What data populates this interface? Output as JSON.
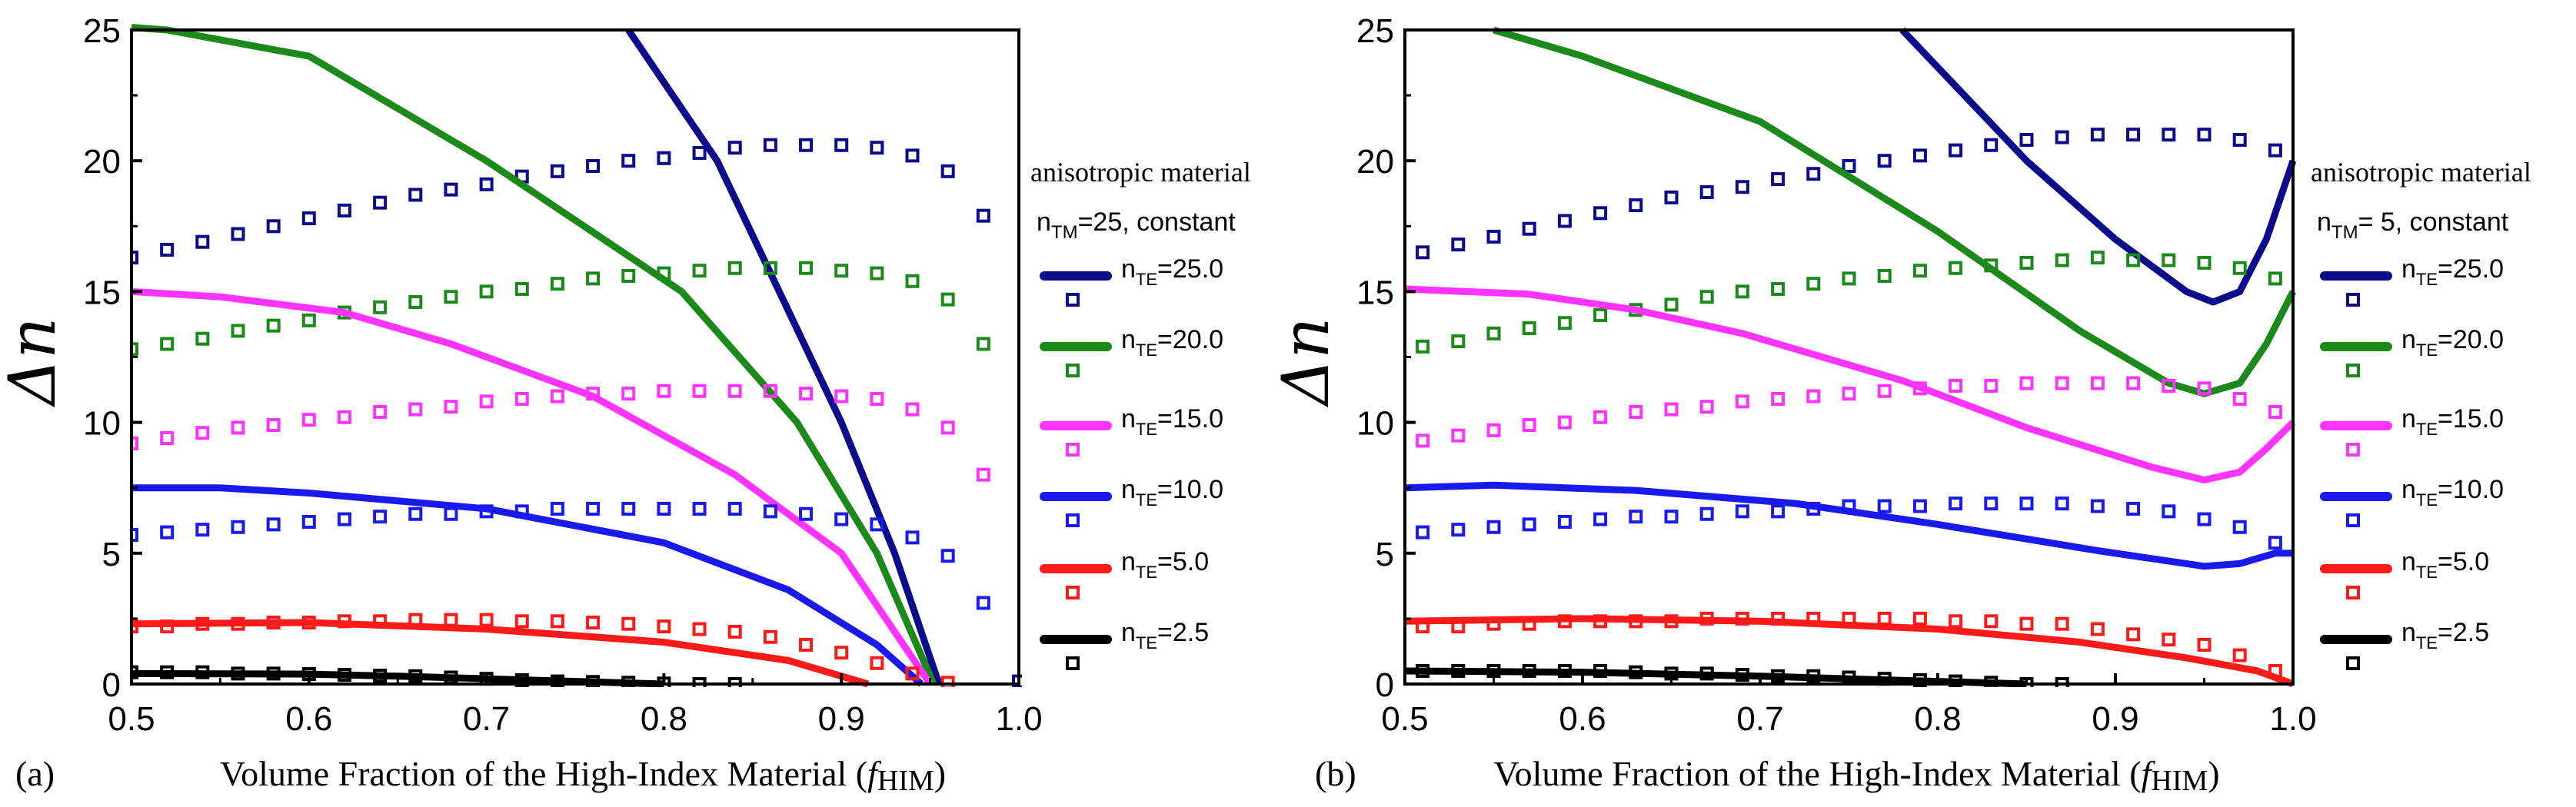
{
  "chart_data": [
    {
      "type": "line",
      "panel_label": "(a)",
      "xlabel": "Volume Fraction of the High-Index Material (",
      "xlabel_italic": "f",
      "xlabel_sub": "HIM",
      "xlabel_close": ")",
      "ylabel": "Δn",
      "xlim": [
        0.5,
        1.0
      ],
      "ylim": [
        0,
        25
      ],
      "xticks": [
        "0.5",
        "0.6",
        "0.7",
        "0.8",
        "0.9",
        "1.0"
      ],
      "yticks": [
        "0",
        "5",
        "10",
        "15",
        "20",
        "25"
      ],
      "legend_title": "anisotropic material",
      "legend_subtitle": {
        "n": "n",
        "sub": "TM",
        "rest": "=25, constant"
      },
      "legend_placement": "right",
      "series": [
        {
          "name": "nTE=25.0",
          "label_sub": "TE",
          "label_rest": "=25.0",
          "color": "#0b0b8c",
          "line_x": [
            0.78,
            0.83,
            0.865,
            0.9,
            0.93,
            0.955
          ],
          "line_y": [
            25,
            20,
            15,
            10,
            5,
            0
          ],
          "marker_x": [
            0.5,
            0.52,
            0.54,
            0.56,
            0.58,
            0.6,
            0.62,
            0.64,
            0.66,
            0.68,
            0.7,
            0.72,
            0.74,
            0.76,
            0.78,
            0.8,
            0.82,
            0.84,
            0.86,
            0.88,
            0.9,
            0.92,
            0.94,
            0.96,
            0.98,
            1.0
          ],
          "marker_y": [
            16.3,
            16.6,
            16.9,
            17.2,
            17.5,
            17.8,
            18.1,
            18.4,
            18.7,
            18.9,
            19.1,
            19.4,
            19.6,
            19.8,
            20.0,
            20.1,
            20.3,
            20.5,
            20.6,
            20.6,
            20.6,
            20.5,
            20.2,
            19.6,
            17.9,
            0.1
          ]
        },
        {
          "name": "nTE=20.0",
          "label_sub": "TE",
          "label_rest": "=20.0",
          "color": "#1b8a1b",
          "line_x": [
            0.5,
            0.52,
            0.6,
            0.7,
            0.81,
            0.875,
            0.92,
            0.952
          ],
          "line_y": [
            25.1,
            25,
            24,
            20,
            15,
            10,
            5,
            0
          ],
          "marker_x": [
            0.5,
            0.52,
            0.54,
            0.56,
            0.58,
            0.6,
            0.62,
            0.64,
            0.66,
            0.68,
            0.7,
            0.72,
            0.74,
            0.76,
            0.78,
            0.8,
            0.82,
            0.84,
            0.86,
            0.88,
            0.9,
            0.92,
            0.94,
            0.96,
            0.98
          ],
          "marker_y": [
            12.8,
            13.0,
            13.2,
            13.5,
            13.7,
            13.9,
            14.2,
            14.4,
            14.6,
            14.8,
            15.0,
            15.1,
            15.3,
            15.5,
            15.6,
            15.7,
            15.8,
            15.9,
            15.9,
            15.9,
            15.8,
            15.7,
            15.4,
            14.7,
            13.0
          ]
        },
        {
          "name": "nTE=15.0",
          "label_sub": "TE",
          "label_rest": "=15.0",
          "color": "#ff33ff",
          "line_x": [
            0.5,
            0.55,
            0.62,
            0.68,
            0.76,
            0.84,
            0.9,
            0.93,
            0.95
          ],
          "line_y": [
            15,
            14.8,
            14.2,
            13,
            11,
            8,
            5,
            2,
            0
          ],
          "marker_x": [
            0.5,
            0.52,
            0.54,
            0.56,
            0.58,
            0.6,
            0.62,
            0.64,
            0.66,
            0.68,
            0.7,
            0.72,
            0.74,
            0.76,
            0.78,
            0.8,
            0.82,
            0.84,
            0.86,
            0.88,
            0.9,
            0.92,
            0.94,
            0.96,
            0.98
          ],
          "marker_y": [
            9.2,
            9.4,
            9.6,
            9.8,
            9.9,
            10.1,
            10.2,
            10.4,
            10.5,
            10.6,
            10.8,
            10.9,
            11.0,
            11.1,
            11.1,
            11.2,
            11.2,
            11.2,
            11.2,
            11.1,
            11.0,
            10.9,
            10.5,
            9.8,
            8.0
          ]
        },
        {
          "name": "nTE=10.0",
          "label_sub": "TE",
          "label_rest": "=10.0",
          "color": "#1a1aee",
          "line_x": [
            0.5,
            0.55,
            0.6,
            0.7,
            0.8,
            0.87,
            0.92,
            0.945
          ],
          "line_y": [
            7.5,
            7.5,
            7.3,
            6.7,
            5.4,
            3.6,
            1.5,
            0
          ],
          "marker_x": [
            0.5,
            0.52,
            0.54,
            0.56,
            0.58,
            0.6,
            0.62,
            0.64,
            0.66,
            0.68,
            0.7,
            0.72,
            0.74,
            0.76,
            0.78,
            0.8,
            0.82,
            0.84,
            0.86,
            0.88,
            0.9,
            0.92,
            0.94,
            0.96,
            0.98
          ],
          "marker_y": [
            5.7,
            5.8,
            5.9,
            6.0,
            6.1,
            6.2,
            6.3,
            6.4,
            6.5,
            6.5,
            6.6,
            6.6,
            6.7,
            6.7,
            6.7,
            6.7,
            6.7,
            6.7,
            6.6,
            6.5,
            6.3,
            6.1,
            5.6,
            4.9,
            3.1
          ]
        },
        {
          "name": "nTE=5.0",
          "label_sub": "TE",
          "label_rest": "=5.0",
          "color": "#ff1a1a",
          "line_x": [
            0.5,
            0.6,
            0.7,
            0.8,
            0.87,
            0.915
          ],
          "line_y": [
            2.3,
            2.35,
            2.1,
            1.6,
            0.9,
            0
          ],
          "marker_x": [
            0.5,
            0.52,
            0.54,
            0.56,
            0.58,
            0.6,
            0.62,
            0.64,
            0.66,
            0.68,
            0.7,
            0.72,
            0.74,
            0.76,
            0.78,
            0.8,
            0.82,
            0.84,
            0.86,
            0.88,
            0.9,
            0.92,
            0.94,
            0.96
          ],
          "marker_y": [
            2.2,
            2.2,
            2.3,
            2.3,
            2.35,
            2.35,
            2.4,
            2.4,
            2.45,
            2.45,
            2.45,
            2.4,
            2.4,
            2.35,
            2.3,
            2.2,
            2.1,
            2.0,
            1.8,
            1.5,
            1.2,
            0.8,
            0.4,
            0.05
          ]
        },
        {
          "name": "nTE=2.5",
          "label_sub": "TE",
          "label_rest": "=2.5",
          "color": "#000000",
          "line_x": [
            0.5,
            0.6,
            0.65,
            0.75,
            0.8
          ],
          "line_y": [
            0.4,
            0.38,
            0.3,
            0.1,
            0
          ],
          "marker_x": [
            0.5,
            0.52,
            0.54,
            0.56,
            0.58,
            0.6,
            0.62,
            0.64,
            0.66,
            0.68,
            0.7,
            0.72,
            0.74,
            0.76,
            0.78,
            0.8,
            0.82,
            0.84
          ],
          "marker_y": [
            0.45,
            0.45,
            0.45,
            0.4,
            0.4,
            0.38,
            0.35,
            0.32,
            0.3,
            0.25,
            0.2,
            0.15,
            0.1,
            0.08,
            0.05,
            0.02,
            0,
            0
          ]
        }
      ]
    },
    {
      "type": "line",
      "panel_label": "(b)",
      "xlabel": "Volume Fraction of the High-Index Material (",
      "xlabel_italic": "f",
      "xlabel_sub": "HIM",
      "xlabel_close": ")",
      "ylabel": "Δn",
      "xlim": [
        0.5,
        1.0
      ],
      "ylim": [
        0,
        25
      ],
      "xticks": [
        "0.5",
        "0.6",
        "0.7",
        "0.8",
        "0.9",
        "1.0"
      ],
      "yticks": [
        "0",
        "5",
        "10",
        "15",
        "20",
        "25"
      ],
      "legend_title": "anisotropic material",
      "legend_subtitle": {
        "n": "n",
        "sub": "TM",
        "rest": "= 5, constant"
      },
      "legend_placement": "right",
      "series": [
        {
          "name": "nTE=25.0",
          "label_sub": "TE",
          "label_rest": "=25.0",
          "color": "#0b0b8c",
          "line_x": [
            0.78,
            0.85,
            0.9,
            0.94,
            0.955,
            0.97,
            0.985,
            1.0
          ],
          "line_y": [
            25,
            20,
            17,
            15,
            14.6,
            15,
            17,
            20
          ],
          "marker_x": [
            0.51,
            0.53,
            0.55,
            0.57,
            0.59,
            0.61,
            0.63,
            0.65,
            0.67,
            0.69,
            0.71,
            0.73,
            0.75,
            0.77,
            0.79,
            0.81,
            0.83,
            0.85,
            0.87,
            0.89,
            0.91,
            0.93,
            0.95,
            0.97,
            0.99
          ],
          "marker_y": [
            16.5,
            16.8,
            17.1,
            17.4,
            17.7,
            18.0,
            18.3,
            18.6,
            18.8,
            19.0,
            19.3,
            19.5,
            19.8,
            20.0,
            20.2,
            20.4,
            20.6,
            20.8,
            20.9,
            21.0,
            21.0,
            21.0,
            21.0,
            20.8,
            20.4
          ]
        },
        {
          "name": "nTE=20.0",
          "label_sub": "TE",
          "label_rest": "=20.0",
          "color": "#1b8a1b",
          "line_x": [
            0.55,
            0.6,
            0.7,
            0.8,
            0.88,
            0.93,
            0.95,
            0.97,
            0.985,
            1.0
          ],
          "line_y": [
            25,
            24,
            21.5,
            17.3,
            13.5,
            11.5,
            11.1,
            11.5,
            13,
            15
          ],
          "marker_x": [
            0.51,
            0.53,
            0.55,
            0.57,
            0.59,
            0.61,
            0.63,
            0.65,
            0.67,
            0.69,
            0.71,
            0.73,
            0.75,
            0.77,
            0.79,
            0.81,
            0.83,
            0.85,
            0.87,
            0.89,
            0.91,
            0.93,
            0.95,
            0.97,
            0.99
          ],
          "marker_y": [
            12.9,
            13.1,
            13.4,
            13.6,
            13.8,
            14.1,
            14.3,
            14.5,
            14.8,
            15.0,
            15.1,
            15.3,
            15.5,
            15.6,
            15.8,
            15.9,
            16.0,
            16.1,
            16.2,
            16.3,
            16.2,
            16.2,
            16.1,
            15.9,
            15.5
          ]
        },
        {
          "name": "nTE=15.0",
          "label_sub": "TE",
          "label_rest": "=15.0",
          "color": "#ff33ff",
          "line_x": [
            0.5,
            0.57,
            0.63,
            0.69,
            0.78,
            0.85,
            0.92,
            0.95,
            0.97,
            0.985,
            1.0
          ],
          "line_y": [
            15.1,
            14.9,
            14.3,
            13.4,
            11.6,
            9.8,
            8.3,
            7.8,
            8.1,
            9,
            10
          ],
          "marker_x": [
            0.51,
            0.53,
            0.55,
            0.57,
            0.59,
            0.61,
            0.63,
            0.65,
            0.67,
            0.69,
            0.71,
            0.73,
            0.75,
            0.77,
            0.79,
            0.81,
            0.83,
            0.85,
            0.87,
            0.89,
            0.91,
            0.93,
            0.95,
            0.97,
            0.99
          ],
          "marker_y": [
            9.3,
            9.5,
            9.7,
            9.9,
            10.0,
            10.2,
            10.4,
            10.5,
            10.6,
            10.8,
            10.9,
            11.0,
            11.1,
            11.2,
            11.3,
            11.4,
            11.4,
            11.5,
            11.5,
            11.5,
            11.5,
            11.4,
            11.3,
            10.9,
            10.4
          ]
        },
        {
          "name": "nTE=10.0",
          "label_sub": "TE",
          "label_rest": "=10.0",
          "color": "#1a1aee",
          "line_x": [
            0.5,
            0.55,
            0.63,
            0.72,
            0.8,
            0.89,
            0.95,
            0.97,
            0.99,
            1.0
          ],
          "line_y": [
            7.5,
            7.6,
            7.4,
            6.9,
            6.1,
            5.1,
            4.5,
            4.6,
            5,
            5
          ],
          "marker_x": [
            0.51,
            0.53,
            0.55,
            0.57,
            0.59,
            0.61,
            0.63,
            0.65,
            0.67,
            0.69,
            0.71,
            0.73,
            0.75,
            0.77,
            0.79,
            0.81,
            0.83,
            0.85,
            0.87,
            0.89,
            0.91,
            0.93,
            0.95,
            0.97,
            0.99
          ],
          "marker_y": [
            5.8,
            5.9,
            6.0,
            6.1,
            6.2,
            6.3,
            6.4,
            6.4,
            6.5,
            6.6,
            6.6,
            6.7,
            6.8,
            6.8,
            6.8,
            6.9,
            6.9,
            6.9,
            6.9,
            6.8,
            6.7,
            6.6,
            6.3,
            6.0,
            5.4
          ]
        },
        {
          "name": "nTE=5.0",
          "label_sub": "TE",
          "label_rest": "=5.0",
          "color": "#ff1a1a",
          "line_x": [
            0.5,
            0.6,
            0.7,
            0.8,
            0.88,
            0.94,
            0.98,
            1.0
          ],
          "line_y": [
            2.4,
            2.5,
            2.4,
            2.1,
            1.6,
            1.0,
            0.5,
            0
          ],
          "marker_x": [
            0.51,
            0.53,
            0.55,
            0.57,
            0.59,
            0.61,
            0.63,
            0.65,
            0.67,
            0.69,
            0.71,
            0.73,
            0.75,
            0.77,
            0.79,
            0.81,
            0.83,
            0.85,
            0.87,
            0.89,
            0.91,
            0.93,
            0.95,
            0.97,
            0.99
          ],
          "marker_y": [
            2.2,
            2.2,
            2.3,
            2.3,
            2.4,
            2.4,
            2.4,
            2.4,
            2.5,
            2.5,
            2.5,
            2.5,
            2.5,
            2.5,
            2.5,
            2.4,
            2.4,
            2.3,
            2.3,
            2.1,
            1.9,
            1.7,
            1.5,
            1.1,
            0.5
          ]
        },
        {
          "name": "nTE=2.5",
          "label_sub": "TE",
          "label_rest": "=2.5",
          "color": "#000000",
          "line_x": [
            0.5,
            0.6,
            0.7,
            0.8,
            0.85
          ],
          "line_y": [
            0.5,
            0.45,
            0.3,
            0.1,
            0
          ],
          "marker_x": [
            0.51,
            0.53,
            0.55,
            0.57,
            0.59,
            0.61,
            0.63,
            0.65,
            0.67,
            0.69,
            0.71,
            0.73,
            0.75,
            0.77,
            0.79,
            0.81,
            0.83,
            0.85,
            0.87
          ],
          "marker_y": [
            0.5,
            0.5,
            0.5,
            0.5,
            0.5,
            0.5,
            0.45,
            0.4,
            0.4,
            0.35,
            0.3,
            0.3,
            0.25,
            0.2,
            0.15,
            0.1,
            0.05,
            0,
            0
          ]
        }
      ]
    }
  ]
}
